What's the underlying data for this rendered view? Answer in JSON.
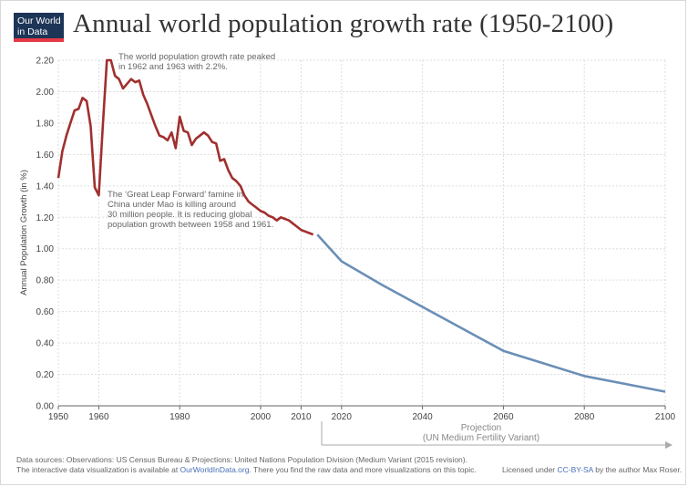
{
  "brand": {
    "line1": "Our World",
    "line2": "in Data"
  },
  "title": "Annual world population growth rate (1950-2100)",
  "colors": {
    "observed": "#a0302e",
    "projected": "#6a8fb6",
    "grid": "#dddddd",
    "axis": "#666666"
  },
  "chart_data": {
    "type": "line",
    "title": "Annual world population growth rate (1950-2100)",
    "ylabel": "Annual Population Growth (in %)",
    "xlim": [
      1950,
      2100
    ],
    "ylim": [
      0,
      2.2
    ],
    "y_ticks": [
      "0.00",
      "0.20",
      "0.40",
      "0.60",
      "0.80",
      "1.00",
      "1.20",
      "1.40",
      "1.60",
      "1.80",
      "2.00",
      "2.20"
    ],
    "x_ticks": [
      "1950",
      "1960",
      "1980",
      "2000",
      "2010",
      "2020",
      "2040",
      "2060",
      "2080",
      "2100"
    ],
    "grid": true,
    "series": [
      {
        "name": "Observations",
        "x": [
          1950,
          1951,
          1952,
          1953,
          1954,
          1955,
          1956,
          1957,
          1958,
          1959,
          1960,
          1961,
          1962,
          1963,
          1964,
          1965,
          1966,
          1967,
          1968,
          1969,
          1970,
          1971,
          1972,
          1973,
          1974,
          1975,
          1976,
          1977,
          1978,
          1979,
          1980,
          1981,
          1982,
          1983,
          1984,
          1985,
          1986,
          1987,
          1988,
          1989,
          1990,
          1991,
          1992,
          1993,
          1994,
          1995,
          1996,
          1997,
          1998,
          1999,
          2000,
          2001,
          2002,
          2003,
          2004,
          2005,
          2006,
          2007,
          2008,
          2009,
          2010,
          2011,
          2012,
          2013
        ],
        "y": [
          1.45,
          1.62,
          1.72,
          1.8,
          1.88,
          1.89,
          1.96,
          1.94,
          1.78,
          1.39,
          1.34,
          1.78,
          2.2,
          2.2,
          2.1,
          2.08,
          2.02,
          2.05,
          2.08,
          2.06,
          2.07,
          1.98,
          1.92,
          1.85,
          1.78,
          1.72,
          1.71,
          1.69,
          1.74,
          1.64,
          1.84,
          1.75,
          1.74,
          1.66,
          1.7,
          1.72,
          1.74,
          1.72,
          1.68,
          1.67,
          1.56,
          1.57,
          1.5,
          1.45,
          1.43,
          1.4,
          1.34,
          1.3,
          1.28,
          1.26,
          1.24,
          1.23,
          1.21,
          1.2,
          1.18,
          1.2,
          1.19,
          1.18,
          1.16,
          1.14,
          1.12,
          1.11,
          1.1,
          1.09
        ]
      },
      {
        "name": "Projection (UN Medium Fertility Variant)",
        "x": [
          2014,
          2020,
          2030,
          2040,
          2050,
          2060,
          2070,
          2080,
          2090,
          2100
        ],
        "y": [
          1.09,
          0.92,
          0.77,
          0.63,
          0.49,
          0.35,
          0.27,
          0.19,
          0.14,
          0.09
        ]
      }
    ],
    "annotations": [
      {
        "lines": [
          "The world population growth rate peaked",
          "in 1962 and 1963 with 2.2%."
        ]
      },
      {
        "lines": [
          "The ‘Great Leap Forward’ famine in",
          "China under Mao is killing around",
          "30 million people. It is reducing global",
          "population growth between 1958 and 1961."
        ]
      }
    ],
    "projection_label": [
      "Projection",
      "(UN Medium Fertility Variant)"
    ]
  },
  "footer": {
    "sources": "Data sources: Observations: US Census Bureau & Projections: United Nations Population Division (Medium Variant (2015 revision).",
    "interactive_pre": "The interactive data visualization is available at ",
    "interactive_link": "OurWorldInData.org",
    "interactive_post": ". There you find the raw data and more visualizations on this topic.",
    "license_pre": "Licensed under ",
    "license_link": "CC-BY-SA",
    "license_post": " by the author Max Roser."
  }
}
